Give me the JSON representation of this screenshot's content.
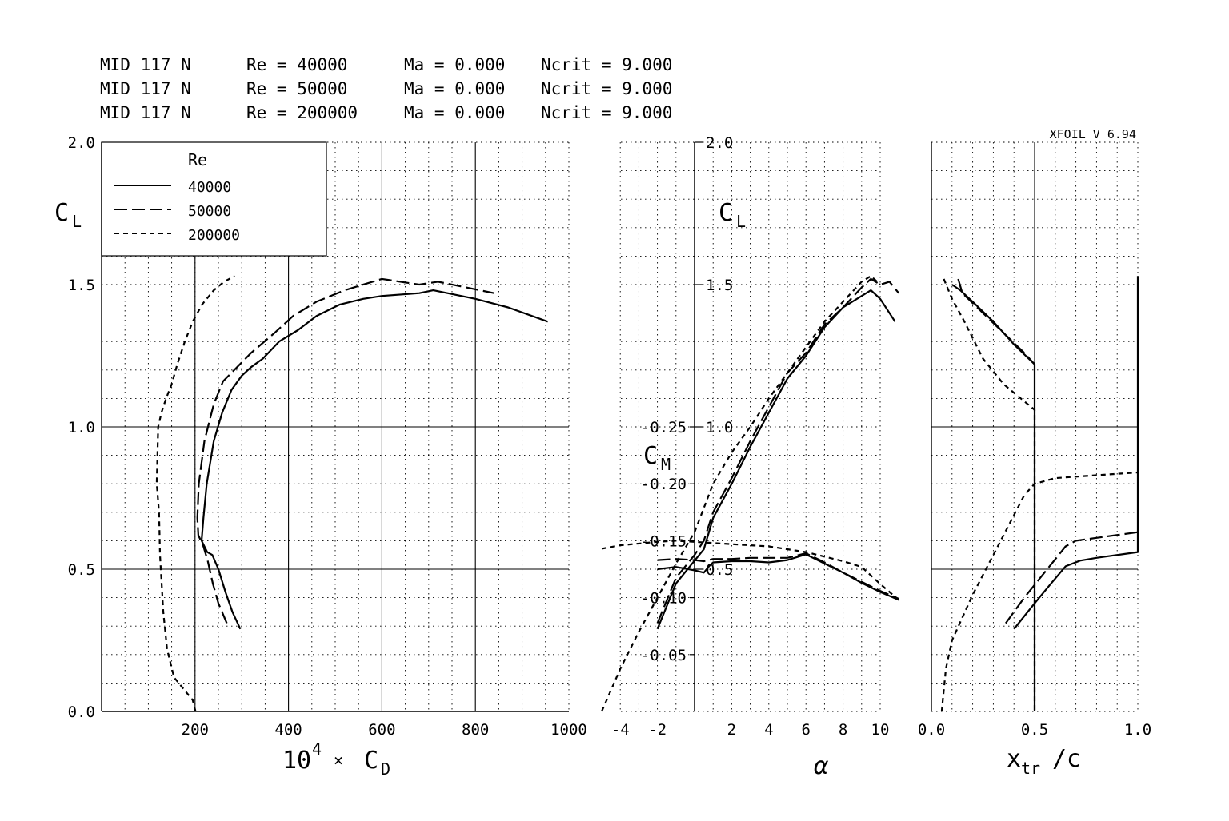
{
  "header": {
    "rows": [
      {
        "airfoil": "MID 117 N",
        "re": "Re = 40000",
        "ma": "Ma = 0.000",
        "ncrit": "Ncrit = 9.000"
      },
      {
        "airfoil": "MID 117 N",
        "re": "Re = 50000",
        "ma": "Ma = 0.000",
        "ncrit": "Ncrit = 9.000"
      },
      {
        "airfoil": "MID 117 N",
        "re": "Re = 200000",
        "ma": "Ma = 0.000",
        "ncrit": "Ncrit = 9.000"
      }
    ],
    "version": "XFOIL V 6.94"
  },
  "colors": {
    "line": "#000000",
    "grid": "#000000",
    "background": "#ffffff"
  },
  "chart_data": [
    {
      "type": "line",
      "id": "polar",
      "xlabel_main": "10",
      "xlabel_sup": "4",
      "xlabel_times": "×",
      "xlabel_sym": "C",
      "xlabel_sub": "D",
      "ylabel_sym": "C",
      "ylabel_sub": "L",
      "xlim": [
        0,
        1000
      ],
      "ylim": [
        0,
        2.0
      ],
      "xticks": [
        200,
        400,
        600,
        800,
        1000
      ],
      "xticklabels": [
        "200",
        "400",
        "600",
        "800",
        "1000"
      ],
      "yticks": [
        0,
        0.5,
        1.0,
        1.5,
        2.0
      ],
      "yticklabels": [
        "0.0",
        "0.5",
        "1.0",
        "1.5",
        "2.0"
      ],
      "legend": {
        "title": "Re",
        "position": "top-left",
        "entries": [
          "40000",
          "50000",
          "200000"
        ]
      },
      "series": [
        {
          "name": "40000",
          "style": "solid",
          "points": [
            [
              297,
              0.29
            ],
            [
              280,
              0.35
            ],
            [
              265,
              0.42
            ],
            [
              250,
              0.5
            ],
            [
              237,
              0.55
            ],
            [
              226,
              0.56
            ],
            [
              214,
              0.6
            ],
            [
              218,
              0.68
            ],
            [
              225,
              0.8
            ],
            [
              240,
              0.95
            ],
            [
              258,
              1.05
            ],
            [
              278,
              1.13
            ],
            [
              300,
              1.18
            ],
            [
              320,
              1.21
            ],
            [
              345,
              1.24
            ],
            [
              380,
              1.3
            ],
            [
              420,
              1.34
            ],
            [
              460,
              1.39
            ],
            [
              510,
              1.43
            ],
            [
              560,
              1.45
            ],
            [
              600,
              1.46
            ],
            [
              680,
              1.47
            ],
            [
              710,
              1.48
            ],
            [
              800,
              1.45
            ],
            [
              870,
              1.42
            ],
            [
              955,
              1.37
            ]
          ]
        },
        {
          "name": "50000",
          "style": "dash",
          "points": [
            [
              268,
              0.31
            ],
            [
              250,
              0.38
            ],
            [
              238,
              0.45
            ],
            [
              227,
              0.53
            ],
            [
              218,
              0.58
            ],
            [
              207,
              0.62
            ],
            [
              205,
              0.68
            ],
            [
              208,
              0.8
            ],
            [
              220,
              0.95
            ],
            [
              240,
              1.08
            ],
            [
              260,
              1.16
            ],
            [
              290,
              1.21
            ],
            [
              320,
              1.26
            ],
            [
              370,
              1.33
            ],
            [
              410,
              1.39
            ],
            [
              460,
              1.44
            ],
            [
              520,
              1.48
            ],
            [
              600,
              1.52
            ],
            [
              680,
              1.5
            ],
            [
              720,
              1.51
            ],
            [
              840,
              1.47
            ]
          ]
        },
        {
          "name": "200000",
          "style": "shortdash",
          "points": [
            [
              201,
              0
            ],
            [
              195,
              0.04
            ],
            [
              180,
              0.07
            ],
            [
              155,
              0.12
            ],
            [
              140,
              0.22
            ],
            [
              132,
              0.35
            ],
            [
              125,
              0.55
            ],
            [
              123,
              0.7
            ],
            [
              118,
              0.8
            ],
            [
              121,
              1.0
            ],
            [
              128,
              1.05
            ],
            [
              138,
              1.1
            ],
            [
              150,
              1.15
            ],
            [
              162,
              1.22
            ],
            [
              178,
              1.3
            ],
            [
              195,
              1.37
            ],
            [
              215,
              1.43
            ],
            [
              240,
              1.48
            ],
            [
              262,
              1.51
            ],
            [
              285,
              1.53
            ]
          ]
        }
      ]
    },
    {
      "type": "line",
      "id": "alpha",
      "xlabel": "α",
      "ylabel_sym": "C",
      "ylabel_sub": "L",
      "cm_label_sym": "C",
      "cm_label_sub": "M",
      "xlim": [
        -5,
        11
      ],
      "ylim": [
        0,
        2.0
      ],
      "xticks": [
        -4,
        -2,
        2,
        4,
        6,
        8,
        10
      ],
      "xticklabels": [
        "-4",
        "-2",
        "2",
        "4",
        "6",
        "8",
        "10"
      ],
      "yticks": [
        0.5,
        1.0,
        1.5,
        2.0
      ],
      "yticklabels": [
        "0.5",
        "1.0",
        "1.5",
        "2.0"
      ],
      "cm_ylim": [
        0,
        -0.3
      ],
      "cm_yticks": [
        -0.05,
        -0.1,
        -0.15,
        -0.2,
        -0.25
      ],
      "cm_yticklabels": [
        "-0.05",
        "-0.10",
        "-0.15",
        "-0.20",
        "-0.25"
      ],
      "series": [
        {
          "name": "40000",
          "quantity": "CL",
          "style": "solid",
          "points": [
            [
              -2,
              0.29
            ],
            [
              -1,
              0.45
            ],
            [
              0,
              0.53
            ],
            [
              0.5,
              0.57
            ],
            [
              1,
              0.68
            ],
            [
              2,
              0.8
            ],
            [
              3,
              0.93
            ],
            [
              4,
              1.05
            ],
            [
              5,
              1.17
            ],
            [
              6,
              1.25
            ],
            [
              7,
              1.35
            ],
            [
              8,
              1.42
            ],
            [
              9,
              1.46
            ],
            [
              9.5,
              1.48
            ],
            [
              10,
              1.45
            ],
            [
              10.8,
              1.37
            ]
          ]
        },
        {
          "name": "50000",
          "quantity": "CL",
          "style": "dash",
          "points": [
            [
              -2,
              0.31
            ],
            [
              -1,
              0.47
            ],
            [
              0,
              0.55
            ],
            [
              0.5,
              0.6
            ],
            [
              1,
              0.7
            ],
            [
              2,
              0.82
            ],
            [
              3,
              0.95
            ],
            [
              4,
              1.07
            ],
            [
              5,
              1.19
            ],
            [
              6,
              1.26
            ],
            [
              7,
              1.36
            ],
            [
              8,
              1.42
            ],
            [
              9,
              1.49
            ],
            [
              9.5,
              1.52
            ],
            [
              10,
              1.5
            ],
            [
              10.5,
              1.51
            ],
            [
              11,
              1.47
            ]
          ]
        },
        {
          "name": "200000",
          "quantity": "CL",
          "style": "shortdash",
          "points": [
            [
              -5,
              0
            ],
            [
              -4,
              0.15
            ],
            [
              -3,
              0.28
            ],
            [
              -2,
              0.4
            ],
            [
              -1,
              0.52
            ],
            [
              0,
              0.63
            ],
            [
              1,
              0.8
            ],
            [
              2,
              0.91
            ],
            [
              3,
              1.0
            ],
            [
              4,
              1.1
            ],
            [
              5,
              1.19
            ],
            [
              6,
              1.28
            ],
            [
              7,
              1.37
            ],
            [
              8,
              1.44
            ],
            [
              9,
              1.51
            ],
            [
              9.5,
              1.53
            ],
            [
              10,
              1.5
            ]
          ]
        },
        {
          "name": "40000",
          "quantity": "CM",
          "style": "solid",
          "points": [
            [
              -2,
              -0.125
            ],
            [
              -1,
              -0.127
            ],
            [
              0,
              -0.124
            ],
            [
              0.5,
              -0.122
            ],
            [
              0.8,
              -0.128
            ],
            [
              1,
              -0.131
            ],
            [
              2,
              -0.132
            ],
            [
              3,
              -0.132
            ],
            [
              4,
              -0.131
            ],
            [
              5,
              -0.133
            ],
            [
              6,
              -0.138
            ],
            [
              7,
              -0.13
            ],
            [
              8,
              -0.122
            ],
            [
              9,
              -0.113
            ],
            [
              10,
              -0.105
            ],
            [
              11,
              -0.098
            ]
          ]
        },
        {
          "name": "50000",
          "quantity": "CM",
          "style": "dash",
          "points": [
            [
              -2,
              -0.133
            ],
            [
              -1,
              -0.134
            ],
            [
              0,
              -0.133
            ],
            [
              0.5,
              -0.132
            ],
            [
              1,
              -0.134
            ],
            [
              2,
              -0.134
            ],
            [
              3,
              -0.135
            ],
            [
              4,
              -0.135
            ],
            [
              5,
              -0.135
            ],
            [
              6,
              -0.139
            ],
            [
              7,
              -0.131
            ],
            [
              8,
              -0.122
            ],
            [
              9,
              -0.114
            ],
            [
              10,
              -0.106
            ],
            [
              11,
              -0.099
            ]
          ]
        },
        {
          "name": "200000",
          "quantity": "CM",
          "style": "shortdash",
          "points": [
            [
              -5,
              -0.143
            ],
            [
              -4,
              -0.146
            ],
            [
              -2,
              -0.149
            ],
            [
              -1,
              -0.15
            ],
            [
              0,
              -0.149
            ],
            [
              2,
              -0.147
            ],
            [
              4,
              -0.145
            ],
            [
              6,
              -0.14
            ],
            [
              8,
              -0.132
            ],
            [
              9,
              -0.127
            ],
            [
              10,
              -0.112
            ],
            [
              11,
              -0.098
            ]
          ]
        }
      ]
    },
    {
      "type": "line",
      "id": "transition",
      "xlabel_sym": "x",
      "xlabel_sub": "tr",
      "xlabel_rest": "/c",
      "xlim": [
        0,
        1.0
      ],
      "ylim": [
        0,
        2.0
      ],
      "xticks": [
        0,
        0.5,
        1.0
      ],
      "xticklabels": [
        "0.0",
        "0.5",
        "1.0"
      ],
      "series": [
        {
          "name": "40000",
          "surface": "top",
          "style": "solid",
          "points": [
            [
              0.1,
              1.5
            ],
            [
              0.14,
              1.48
            ],
            [
              0.2,
              1.44
            ],
            [
              0.3,
              1.37
            ],
            [
              0.4,
              1.29
            ],
            [
              0.5,
              1.22
            ],
            [
              0.5,
              1.2
            ],
            [
              0.5,
              0
            ]
          ]
        },
        {
          "name": "40000",
          "surface": "bottom",
          "style": "solid",
          "points": [
            [
              0.4,
              0.29
            ],
            [
              0.5,
              0.38
            ],
            [
              0.58,
              0.45
            ],
            [
              0.65,
              0.51
            ],
            [
              0.72,
              0.53
            ],
            [
              0.8,
              0.54
            ],
            [
              0.9,
              0.55
            ],
            [
              1.0,
              0.56
            ],
            [
              1.0,
              1.53
            ]
          ]
        },
        {
          "name": "50000",
          "surface": "top",
          "style": "dash",
          "points": [
            [
              0.13,
              1.52
            ],
            [
              0.15,
              1.47
            ],
            [
              0.25,
              1.4
            ],
            [
              0.35,
              1.33
            ],
            [
              0.45,
              1.26
            ],
            [
              0.5,
              1.22
            ]
          ]
        },
        {
          "name": "50000",
          "surface": "bottom",
          "style": "dash",
          "points": [
            [
              0.36,
              0.31
            ],
            [
              0.45,
              0.4
            ],
            [
              0.55,
              0.49
            ],
            [
              0.65,
              0.58
            ],
            [
              0.7,
              0.6
            ],
            [
              0.8,
              0.61
            ],
            [
              1.0,
              0.63
            ]
          ]
        },
        {
          "name": "200000",
          "surface": "top",
          "style": "shortdash",
          "points": [
            [
              0.06,
              1.52
            ],
            [
              0.1,
              1.45
            ],
            [
              0.16,
              1.37
            ],
            [
              0.25,
              1.24
            ],
            [
              0.35,
              1.15
            ],
            [
              0.45,
              1.09
            ],
            [
              0.5,
              1.06
            ],
            [
              0.5,
              0
            ]
          ]
        },
        {
          "name": "200000",
          "surface": "bottom",
          "style": "shortdash",
          "points": [
            [
              0.05,
              0
            ],
            [
              0.07,
              0.15
            ],
            [
              0.1,
              0.25
            ],
            [
              0.15,
              0.33
            ],
            [
              0.2,
              0.41
            ],
            [
              0.25,
              0.48
            ],
            [
              0.3,
              0.55
            ],
            [
              0.4,
              0.69
            ],
            [
              0.45,
              0.76
            ],
            [
              0.5,
              0.8
            ],
            [
              0.6,
              0.82
            ],
            [
              0.8,
              0.83
            ],
            [
              1.0,
              0.84
            ]
          ]
        }
      ]
    }
  ]
}
